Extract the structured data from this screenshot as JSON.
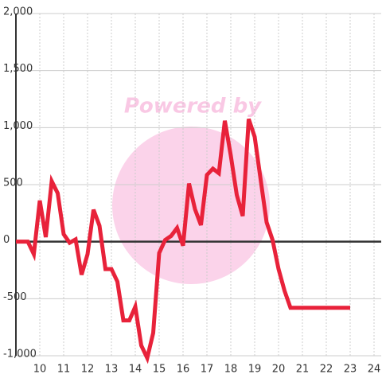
{
  "chart_data": {
    "type": "line",
    "watermark": "Powered by",
    "x": [
      9,
      9.5,
      9.75,
      10,
      10.25,
      10.5,
      10.75,
      11,
      11.25,
      11.5,
      11.75,
      12,
      12.25,
      12.5,
      12.75,
      13,
      13.25,
      13.5,
      13.75,
      14,
      14.25,
      14.5,
      14.75,
      15,
      15.25,
      15.5,
      15.75,
      16,
      16.25,
      16.5,
      16.75,
      17,
      17.25,
      17.5,
      17.75,
      18,
      18.25,
      18.5,
      18.75,
      19,
      19.25,
      19.5,
      19.75,
      20,
      20.25,
      20.5,
      23
    ],
    "values": [
      0,
      0,
      -110,
      360,
      40,
      530,
      425,
      65,
      -10,
      20,
      -290,
      -110,
      280,
      140,
      -240,
      -240,
      -350,
      -690,
      -690,
      -570,
      -910,
      -1020,
      -800,
      -100,
      15,
      50,
      120,
      -35,
      510,
      285,
      145,
      585,
      640,
      600,
      1060,
      755,
      410,
      225,
      1075,
      920,
      545,
      170,
      15,
      -240,
      -430,
      -580,
      -580
    ],
    "color": "#e8223a",
    "xlim": [
      9,
      24.3
    ],
    "xticks": [
      10,
      11,
      12,
      13,
      14,
      15,
      16,
      17,
      18,
      19,
      20,
      21,
      22,
      23,
      24
    ],
    "ylim": [
      -1000,
      2000
    ],
    "yticks": [
      {
        "value": -1000,
        "label": "-1,000"
      },
      -500,
      0,
      500,
      {
        "value": 1000,
        "label": "1,000"
      },
      {
        "value": 1500,
        "label": "1,500"
      },
      {
        "value": 2000,
        "label": "2,000"
      }
    ],
    "grid": true
  }
}
